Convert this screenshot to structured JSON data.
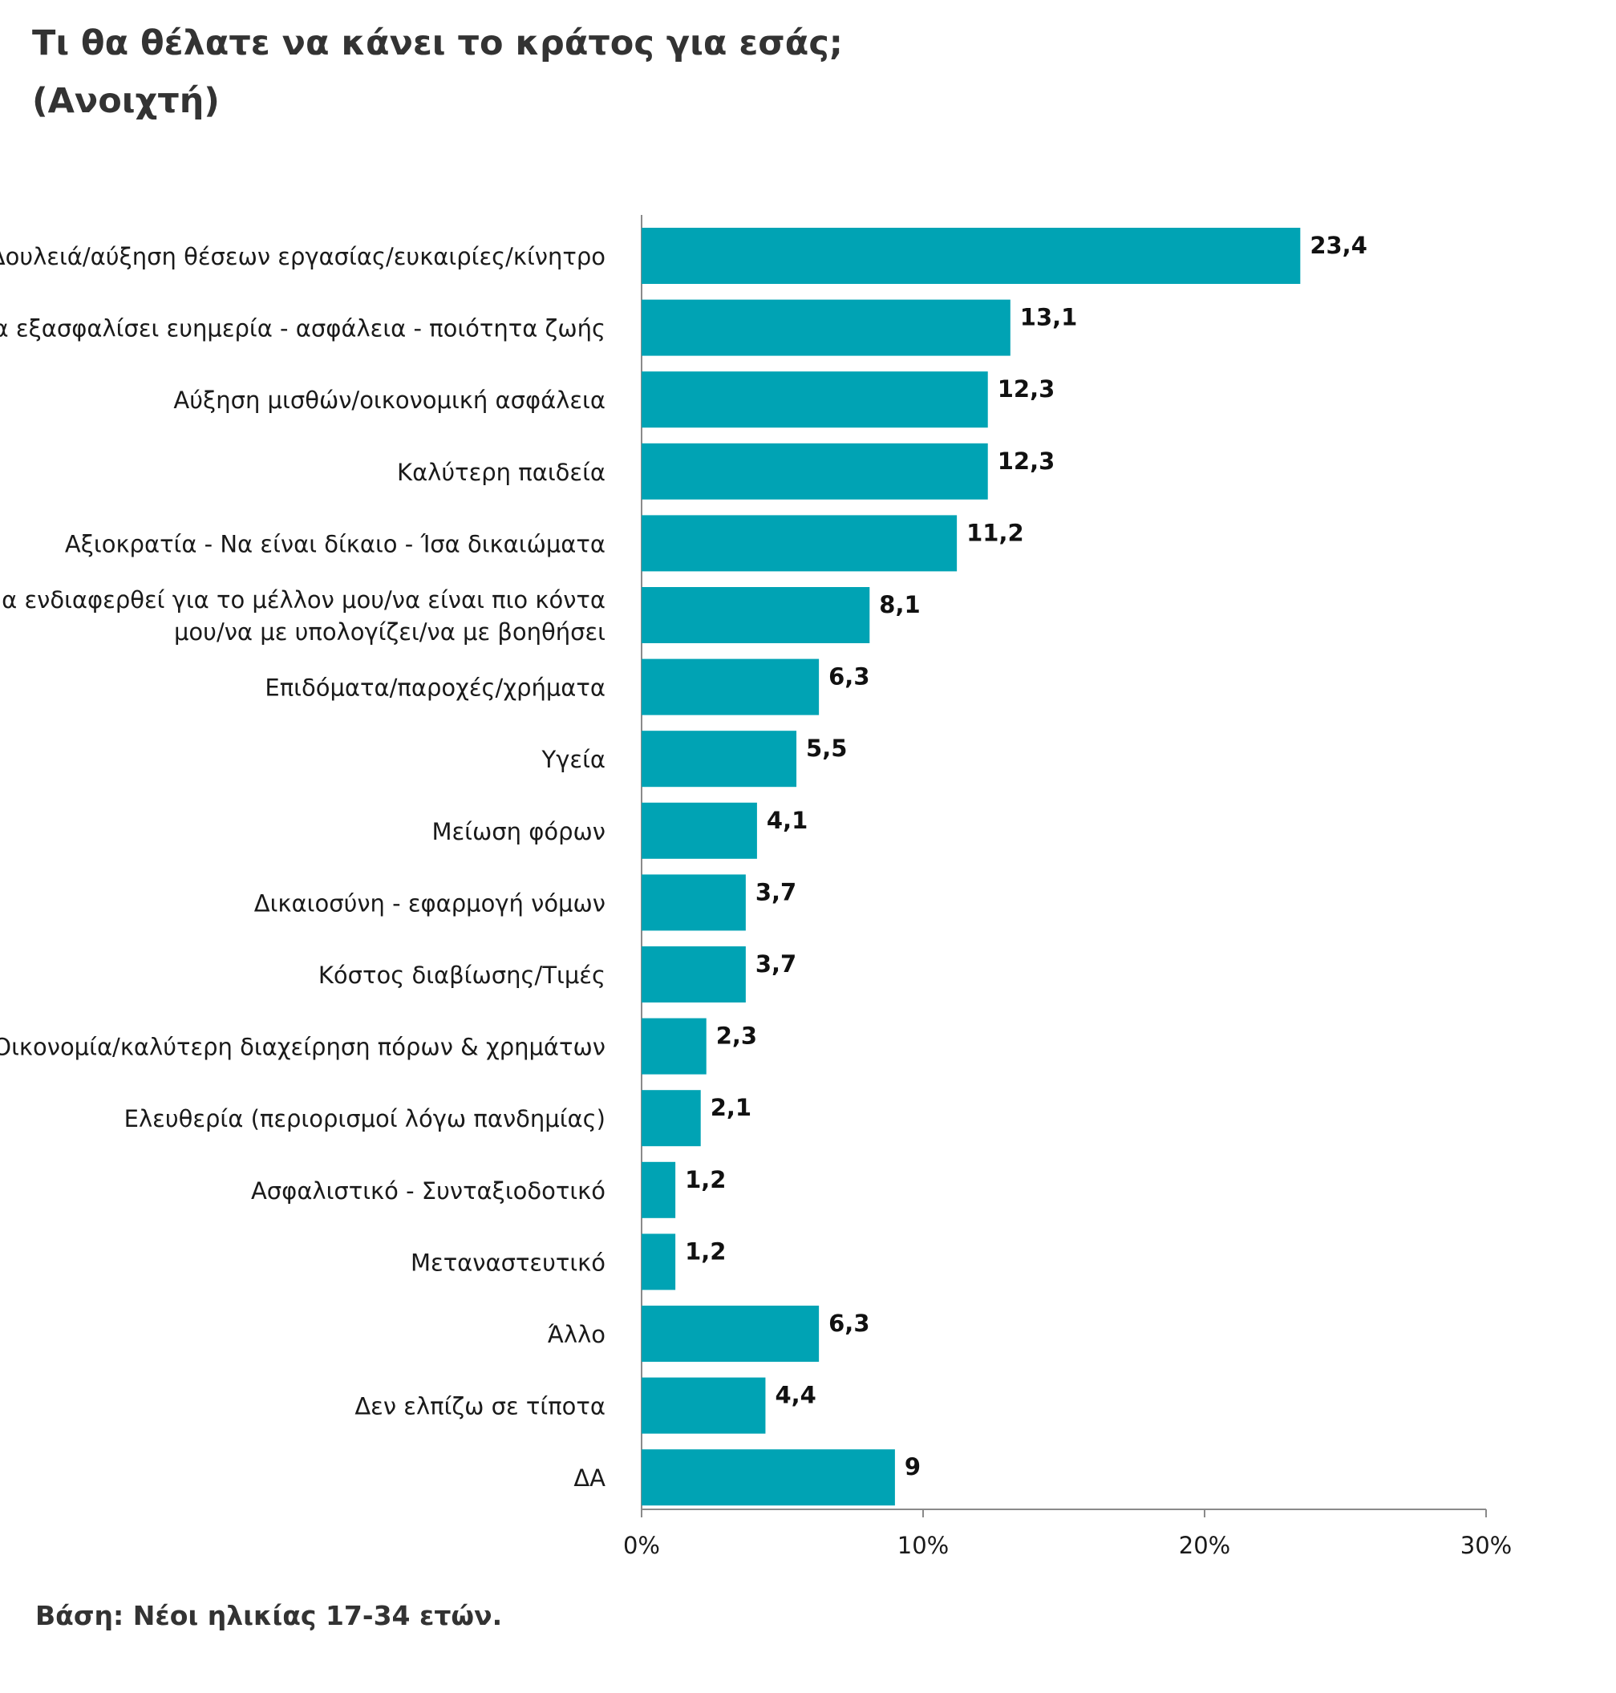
{
  "title_lines": [
    "Τι θα θέλατε να κάνει το κράτος για εσάς;",
    "(Ανοιχτή)"
  ],
  "footnote": "Βάση: Νέοι ηλικίας 17-34 ετών.",
  "chart_data": {
    "type": "bar",
    "orientation": "horizontal",
    "title": "Τι θα θέλατε να κάνει το κράτος για εσάς; (Ανοιχτή)",
    "xlabel": "",
    "ylabel": "",
    "xlim": [
      0,
      30
    ],
    "x_ticks": [
      0,
      10,
      20,
      30
    ],
    "x_tick_labels": [
      "0%",
      "10%",
      "20%",
      "30%"
    ],
    "grid": false,
    "bar_color": "#00A3B4",
    "categories": [
      [
        "Δουλειά/αύξηση θέσεων εργασίας/ευκαιρίες/κίνητρο"
      ],
      [
        "Να εξασφαλίσει ευημερία - ασφάλεια - ποιότητα ζωής"
      ],
      [
        "Αύξηση μισθών/οικονομική ασφάλεια"
      ],
      [
        "Καλύτερη παιδεία"
      ],
      [
        "Αξιοκρατία - Να είναι δίκαιο - Ίσα δικαιώματα"
      ],
      [
        "Να ενδιαφερθεί για το μέλλον μου/να είναι πιο κόντα",
        "μου/να με υπολογίζει/να με βοηθήσει"
      ],
      [
        "Επιδόματα/παροχές/χρήματα"
      ],
      [
        "Υγεία"
      ],
      [
        "Μείωση φόρων"
      ],
      [
        "Δικαιοσύνη - εφαρμογή νόμων"
      ],
      [
        "Κόστος διαβίωσης/Τιμές"
      ],
      [
        "Οικονομία/καλύτερη διαχείρηση πόρων & χρημάτων"
      ],
      [
        "Ελευθερία (περιορισμοί λόγω πανδημίας)"
      ],
      [
        "Ασφαλιστικό - Συνταξιοδοτικό"
      ],
      [
        "Μεταναστευτικό"
      ],
      [
        "Άλλο"
      ],
      [
        "Δεν ελπίζω σε τίποτα"
      ],
      [
        "ΔΑ"
      ]
    ],
    "values": [
      23.4,
      13.1,
      12.3,
      12.3,
      11.2,
      8.1,
      6.3,
      5.5,
      4.1,
      3.7,
      3.7,
      2.3,
      2.1,
      1.2,
      1.2,
      6.3,
      4.4,
      9
    ],
    "value_labels": [
      "23,4",
      "13,1",
      "12,3",
      "12,3",
      "11,2",
      "8,1",
      "6,3",
      "5,5",
      "4,1",
      "3,7",
      "3,7",
      "2,3",
      "2,1",
      "1,2",
      "1,2",
      "6,3",
      "4,4",
      "9"
    ]
  }
}
